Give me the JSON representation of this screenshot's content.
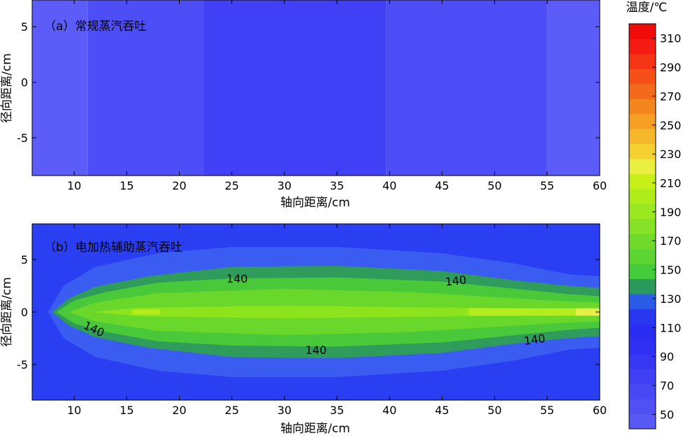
{
  "chart_data": [
    {
      "type": "heatmap",
      "panel_label": "（a）常规蒸汽吞吐",
      "xlabel": "轴向距离/cm",
      "ylabel": "径向距离/cm",
      "xlim": [
        6,
        60
      ],
      "ylim": [
        -8.4,
        7.4
      ],
      "xticks": [
        10,
        15,
        20,
        25,
        30,
        35,
        40,
        45,
        50,
        55,
        60
      ],
      "yticks": [
        5,
        0,
        -5
      ],
      "regions": [
        {
          "level": "55",
          "color": "#5c5cf8",
          "x": [
            6,
            11.3
          ]
        },
        {
          "level": "62",
          "color": "#4e4ef8",
          "x": [
            11.3,
            22.3
          ]
        },
        {
          "level": "70",
          "color": "#4040f6",
          "x": [
            22.3,
            39.7
          ]
        },
        {
          "level": "62",
          "color": "#4e4ef8",
          "x": [
            39.7,
            55.0
          ]
        },
        {
          "level": "55",
          "color": "#5c5cf8",
          "x": [
            55.0,
            60
          ]
        }
      ]
    },
    {
      "type": "heatmap",
      "panel_label": "（b）电加热辅助蒸汽吞吐",
      "xlabel": "轴向距离/cm",
      "ylabel": "径向距离/cm",
      "xlim": [
        6,
        60
      ],
      "ylim": [
        -8.4,
        8.4
      ],
      "xticks": [
        10,
        15,
        20,
        25,
        30,
        35,
        40,
        45,
        50,
        55,
        60
      ],
      "yticks": [
        5,
        0,
        -5
      ],
      "background_color": "#2a3ff2",
      "contour_levels": [
        {
          "level": 110,
          "color": "#3a5cf0",
          "profile": [
            [
              7.5,
              0.0
            ],
            [
              9,
              2.5
            ],
            [
              12,
              4.3
            ],
            [
              18,
              5.6
            ],
            [
              25,
              6.2
            ],
            [
              35,
              6.2
            ],
            [
              45,
              5.6
            ],
            [
              52,
              4.6
            ],
            [
              57,
              3.6
            ],
            [
              60,
              3.4
            ]
          ]
        },
        {
          "level": 130,
          "color": "#2f9c5c",
          "profile": [
            [
              7.9,
              0.0
            ],
            [
              9.5,
              1.3
            ],
            [
              12,
              2.4
            ],
            [
              17,
              3.4
            ],
            [
              25,
              4.3
            ],
            [
              35,
              4.4
            ],
            [
              45,
              3.9
            ],
            [
              52,
              3.0
            ],
            [
              57,
              2.5
            ],
            [
              60,
              2.3
            ]
          ]
        },
        {
          "level": 140,
          "color": "#49c83a",
          "profile": [
            [
              8.3,
              0.0
            ],
            [
              10,
              1.1
            ],
            [
              13,
              1.9
            ],
            [
              18,
              2.8
            ],
            [
              25,
              3.2
            ],
            [
              35,
              3.3
            ],
            [
              45,
              2.9
            ],
            [
              52,
              2.2
            ],
            [
              57,
              1.7
            ],
            [
              60,
              1.5
            ]
          ]
        },
        {
          "level": 160,
          "color": "#6ad82a",
          "profile": [
            [
              9.5,
              0.0
            ],
            [
              12,
              0.9
            ],
            [
              18,
              1.8
            ],
            [
              30,
              2.2
            ],
            [
              42,
              1.9
            ],
            [
              52,
              1.3
            ],
            [
              57,
              1.0
            ],
            [
              60,
              0.9
            ]
          ]
        },
        {
          "level": 180,
          "color": "#8ee41c",
          "profile": [
            [
              12,
              0.0
            ],
            [
              16,
              0.4
            ],
            [
              30,
              0.6
            ],
            [
              47,
              0.4
            ],
            [
              55,
              0.35
            ],
            [
              60,
              0.3
            ]
          ]
        }
      ],
      "hotspots": [
        {
          "level": 200,
          "color": "#b4ec1e",
          "x": [
            15.5,
            17.5
          ],
          "halfwidth": 0.25
        },
        {
          "level": 200,
          "color": "#b4ec1e",
          "x": [
            47.5,
            60
          ],
          "halfwidth": 0.35
        },
        {
          "level": 220,
          "color": "#e6ee4a",
          "x": [
            57.7,
            60
          ],
          "halfwidth": 0.35
        }
      ],
      "annotations": [
        {
          "text": "140",
          "x": 25.5,
          "y": 3.2,
          "rotate": 0
        },
        {
          "text": "140",
          "x": 46.3,
          "y": 3.0,
          "rotate": -6
        },
        {
          "text": "140",
          "x": 11.9,
          "y": -1.6,
          "rotate": 25
        },
        {
          "text": "140",
          "x": 33.0,
          "y": -3.6,
          "rotate": 0
        },
        {
          "text": "140",
          "x": 53.8,
          "y": -2.6,
          "rotate": -8
        }
      ]
    }
  ],
  "colorbar": {
    "title": "温度/℃",
    "range": [
      40,
      320
    ],
    "colors": [
      "#5858f4",
      "#5050f4",
      "#4848f4",
      "#4040f4",
      "#3838f4",
      "#3030f4",
      "#2a2ef2",
      "#2838f0",
      "#2a5ce8",
      "#2a9a5c",
      "#44cc3a",
      "#5cd432",
      "#70da2c",
      "#86e226",
      "#9ae820",
      "#b0ec1a",
      "#c6f018",
      "#eaee40",
      "#f4d030",
      "#f4b82a",
      "#f4a024",
      "#f4861e",
      "#f46a1c",
      "#f45018",
      "#f43616",
      "#f41c12",
      "#f00a0a"
    ],
    "tick_labels": [
      50,
      70,
      90,
      110,
      130,
      150,
      170,
      190,
      210,
      230,
      250,
      270,
      290,
      310
    ]
  }
}
